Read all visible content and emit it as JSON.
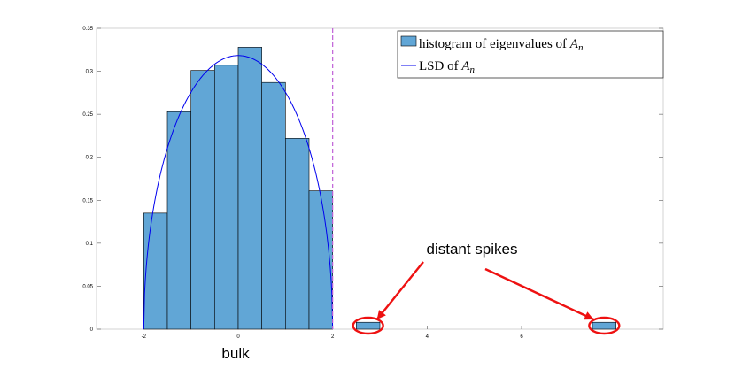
{
  "chart_data": {
    "type": "bar",
    "xlim": [
      -3,
      9
    ],
    "ylim": [
      0,
      0.35
    ],
    "x_ticks": [
      {
        "value": -2,
        "label": "-2"
      },
      {
        "value": 0,
        "label": "0"
      },
      {
        "value": 2,
        "label": "2"
      },
      {
        "value": 4,
        "label": "4"
      },
      {
        "value": 6,
        "label": "6"
      }
    ],
    "y_ticks": [
      {
        "value": 0,
        "label": "0"
      },
      {
        "value": 0.05,
        "label": "0.05"
      },
      {
        "value": 0.1,
        "label": "0.1"
      },
      {
        "value": 0.15,
        "label": "0.15"
      },
      {
        "value": 0.2,
        "label": "0.2"
      },
      {
        "value": 0.25,
        "label": "0.25"
      },
      {
        "value": 0.3,
        "label": "0.3"
      },
      {
        "value": 0.35,
        "label": "0.35"
      }
    ],
    "bins": [
      {
        "x0": -2.0,
        "x1": -1.5,
        "value": 0.135
      },
      {
        "x0": -1.5,
        "x1": -1.0,
        "value": 0.253
      },
      {
        "x0": -1.0,
        "x1": -0.5,
        "value": 0.301
      },
      {
        "x0": -0.5,
        "x1": 0.0,
        "value": 0.307
      },
      {
        "x0": 0.0,
        "x1": 0.5,
        "value": 0.328
      },
      {
        "x0": 0.5,
        "x1": 1.0,
        "value": 0.287
      },
      {
        "x0": 1.0,
        "x1": 1.5,
        "value": 0.222
      },
      {
        "x0": 1.5,
        "x1": 2.0,
        "value": 0.161
      },
      {
        "x0": 2.5,
        "x1": 3.0,
        "value": 0.008
      },
      {
        "x0": 7.5,
        "x1": 8.0,
        "value": 0.008
      }
    ],
    "lsd_curve": {
      "center": 0,
      "radius": 2,
      "peak": 0.3183
    },
    "vline_x": 2,
    "legend": {
      "position": "top-right",
      "entries": [
        {
          "text": "histogram of eigenvalues of ",
          "math": "A",
          "sub": "n",
          "kind": "bar"
        },
        {
          "text": "LSD of ",
          "math": "A",
          "sub": "n",
          "kind": "line"
        }
      ]
    },
    "annotations": {
      "spikes_label": "distant spikes",
      "bulk_label": "bulk"
    },
    "colors": {
      "bar_fill": "#61a6d6",
      "bar_edge": "#000000",
      "curve": "#0000ee",
      "vline": "#c060d8",
      "annotation": "#ee1111"
    }
  }
}
